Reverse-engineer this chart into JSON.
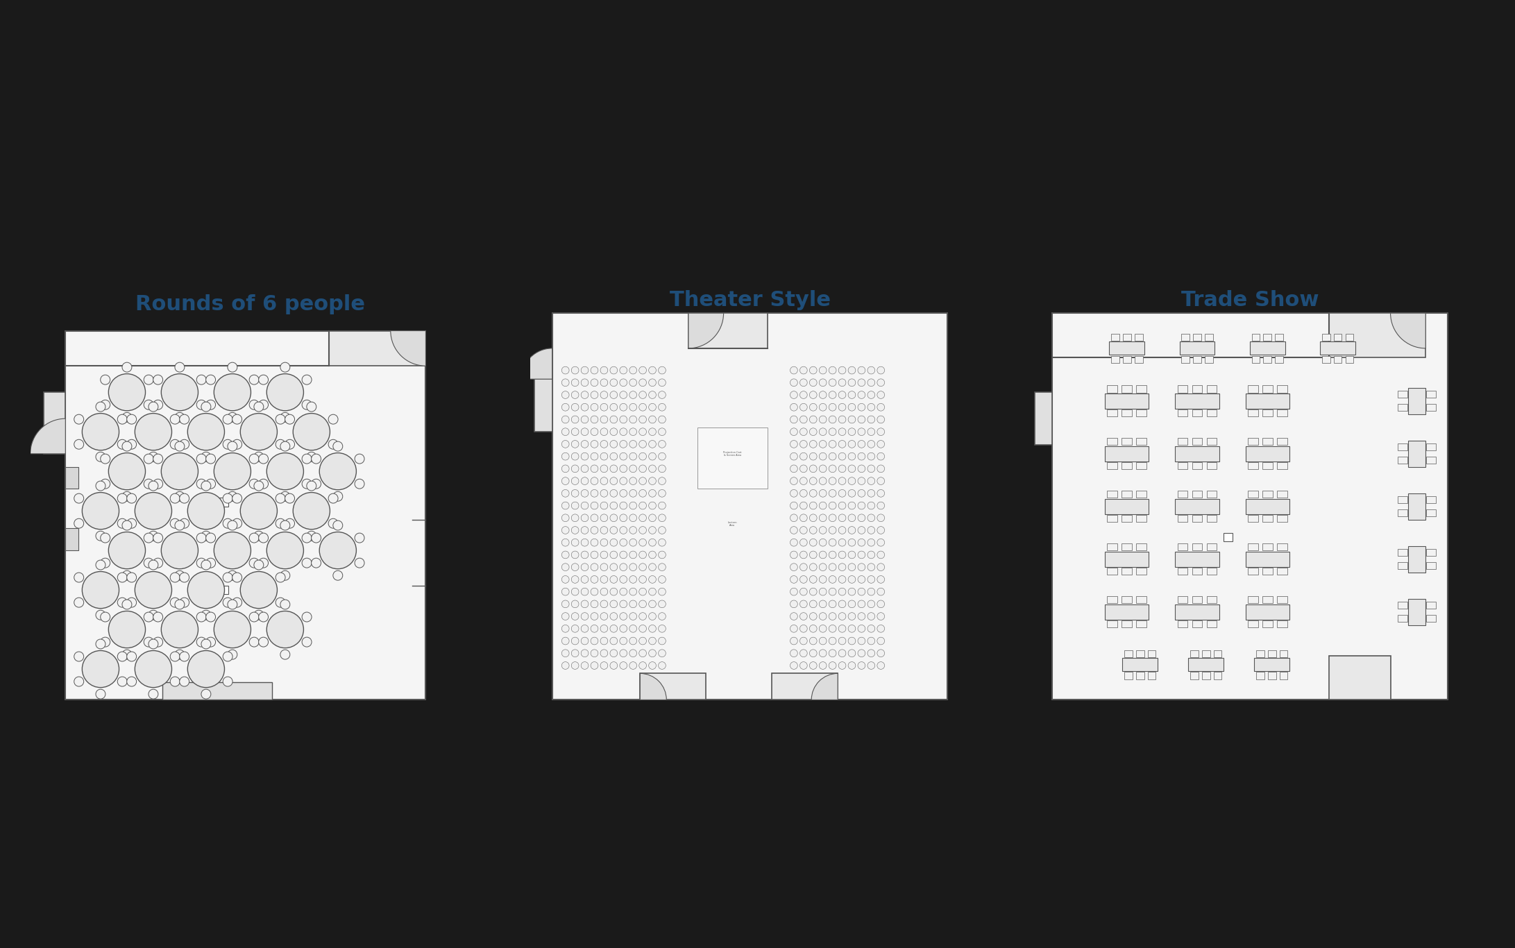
{
  "title1": "Rounds of 6 people",
  "title2": "Theater Style",
  "title3": "Trade Show",
  "title_color": "#1f4e79",
  "title_fontsize": 22,
  "title_fontweight": "bold",
  "fig_bg": "#1a1a1a",
  "wall_color": "#555555",
  "floor_color": "#f5f5f5",
  "floor_color2": "#eeeeee"
}
